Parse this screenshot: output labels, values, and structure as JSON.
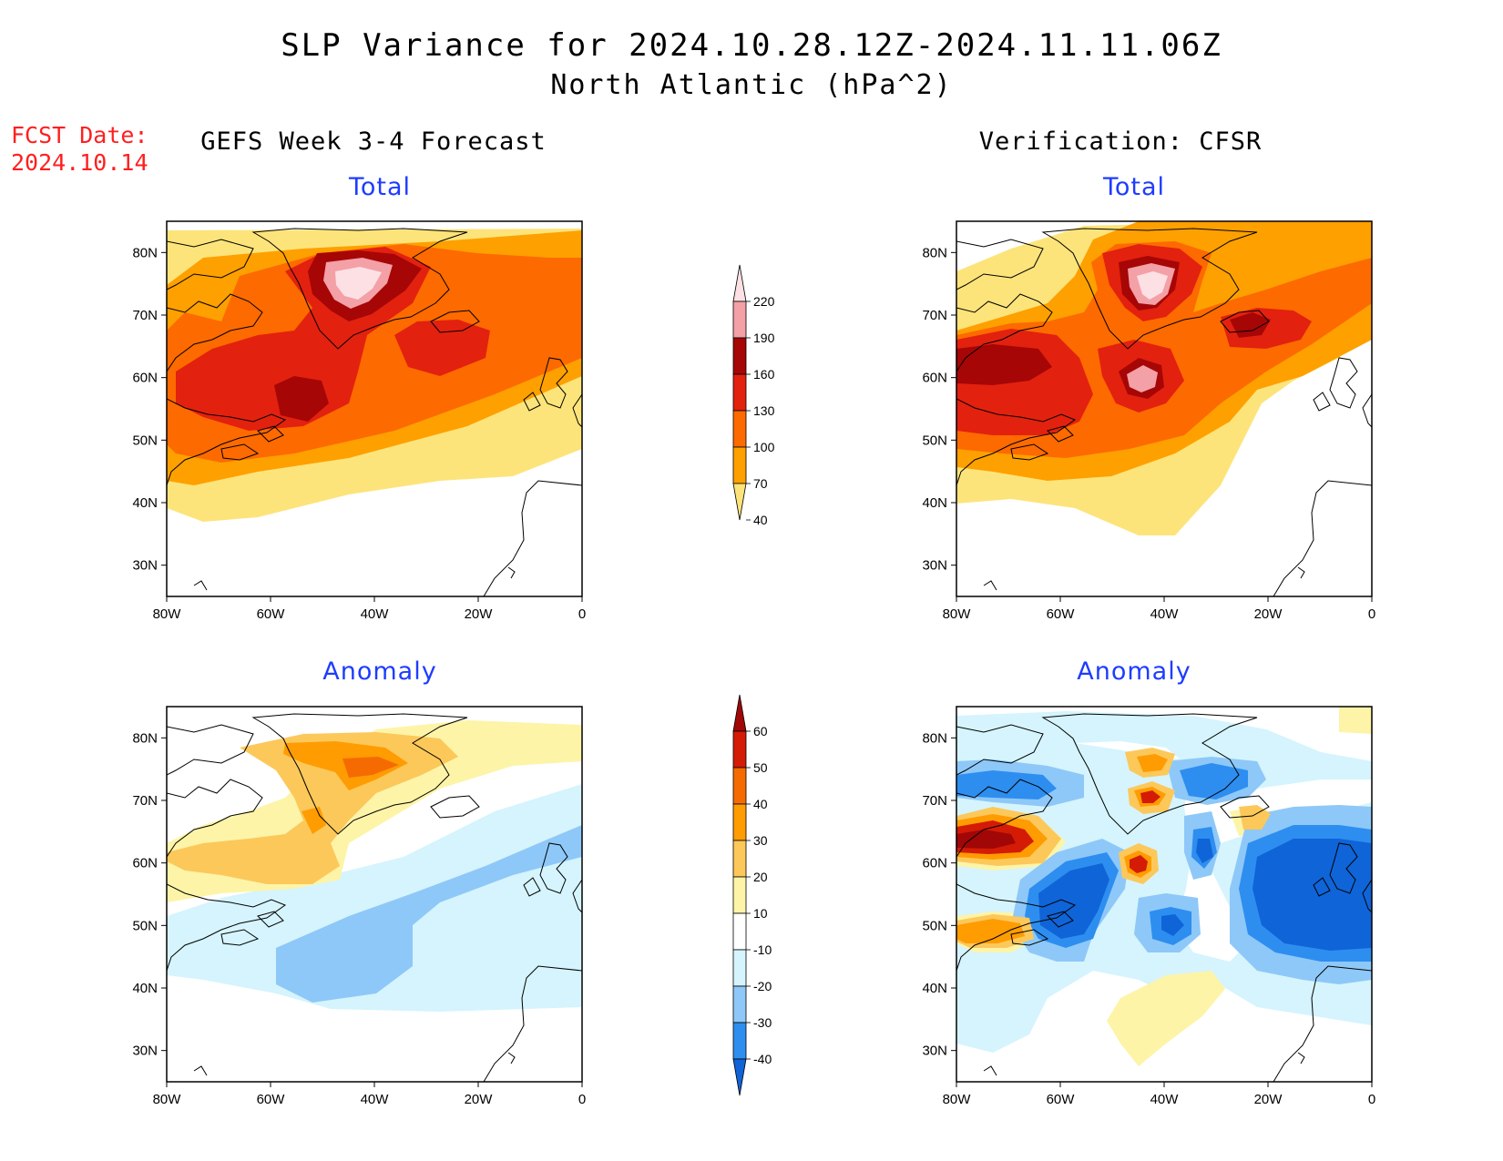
{
  "title": "SLP Variance for 2024.10.28.12Z-2024.11.11.06Z",
  "subtitle": "North Atlantic (hPa^2)",
  "fcst_label": "FCST Date:",
  "fcst_date": "2024.10.14",
  "columns": {
    "left": "GEFS Week 3-4 Forecast",
    "right": "Verification: CFSR"
  },
  "panels": {
    "total_forecast": "Total",
    "total_verif": "Total",
    "anom_forecast": "Anomaly",
    "anom_verif": "Anomaly"
  },
  "axes": {
    "lat_labels": [
      "80N",
      "70N",
      "60N",
      "50N",
      "40N",
      "30N"
    ],
    "lon_labels": [
      "80W",
      "60W",
      "40W",
      "20W",
      "0"
    ],
    "lat_range": [
      25,
      85
    ],
    "lon_range": [
      -80,
      0
    ]
  },
  "colorbar_total": {
    "levels": [
      "40",
      "70",
      "100",
      "130",
      "160",
      "190",
      "220"
    ],
    "colors": [
      "#fde47a",
      "#fea000",
      "#fd6a00",
      "#e3210f",
      "#a60606",
      "#f3a0a6",
      "#fde0e4"
    ]
  },
  "colorbar_anomaly": {
    "levels": [
      "-40",
      "-30",
      "-20",
      "-10",
      "10",
      "20",
      "30",
      "40",
      "50",
      "60"
    ],
    "colors": [
      "#0f64d8",
      "#2d8ef0",
      "#8ec8f8",
      "#d5f4fd",
      "#ffffff",
      "#fdf4a8",
      "#fcc85a",
      "#fe9c02",
      "#f56b02",
      "#d41b05",
      "#a10706"
    ]
  }
}
